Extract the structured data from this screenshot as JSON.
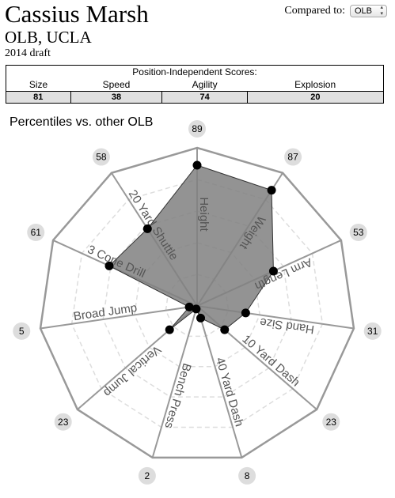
{
  "header": {
    "name": "Cassius Marsh",
    "position": "OLB, UCLA",
    "draft": "2014 draft",
    "compare_label": "Compared to:",
    "compare_value": "OLB"
  },
  "scores": {
    "title": "Position-Independent Scores:",
    "labels": [
      "Size",
      "Speed",
      "Agility",
      "Explosion"
    ],
    "values": [
      "81",
      "38",
      "74",
      "20"
    ]
  },
  "chart_data": {
    "type": "radar",
    "title": "Percentiles vs. other OLB",
    "categories": [
      "Height",
      "Weight",
      "Arm Length",
      "Hand Size",
      "10 Yard Dash",
      "40 Yard Dash",
      "Bench Press",
      "Vertical Jump",
      "Broad Jump",
      "3 Cone Drill",
      "20 Yard Shuttle"
    ],
    "values": [
      89,
      87,
      53,
      31,
      23,
      8,
      2,
      23,
      5,
      61,
      58
    ],
    "rlim": [
      0,
      100
    ],
    "rticks": [
      20,
      40,
      60,
      80,
      100
    ],
    "color": "#808080"
  }
}
